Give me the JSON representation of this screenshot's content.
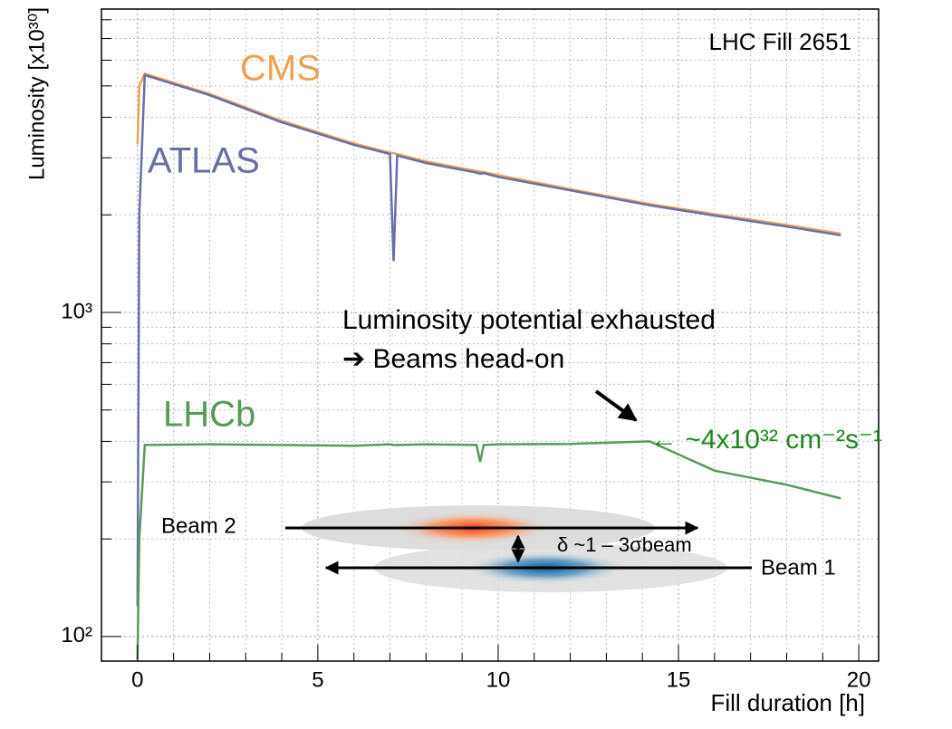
{
  "chart_data": {
    "type": "line",
    "title": "LHC Fill 2651",
    "x_label": "Fill duration [h]",
    "y_label": "Luminosity [x10³⁰]",
    "log_y": true,
    "grid": true,
    "xlim": [
      -1,
      20.55
    ],
    "ylim": [
      84,
      8630
    ],
    "xticks": [
      0,
      5,
      10,
      15,
      20
    ],
    "yticks": [
      {
        "value": 100,
        "label": "10²"
      },
      {
        "value": 1000,
        "label": "10³"
      }
    ],
    "xminorticks": [
      1,
      2,
      3,
      4,
      6,
      7,
      8,
      9,
      11,
      12,
      13,
      14,
      16,
      17,
      18,
      19
    ],
    "yminorticks": [
      200,
      300,
      400,
      500,
      600,
      700,
      800,
      900,
      2000,
      3000,
      4000,
      5000,
      6000,
      7000,
      8000
    ],
    "x": [
      0,
      0.05,
      0.2,
      2,
      4,
      6,
      7.0,
      7.1,
      7.2,
      8,
      9.4,
      9.5,
      9.6,
      10,
      12,
      14.2,
      16,
      18,
      19.5
    ],
    "series": [
      {
        "name": "CMS",
        "color": "#f0a050",
        "values": [
          3300,
          5000,
          5450,
          4720,
          3900,
          3320,
          3110,
          3100,
          3080,
          2920,
          2730,
          2720,
          2710,
          2650,
          2400,
          2160,
          2010,
          1860,
          1750
        ]
      },
      {
        "name": "ATLAS",
        "color": "#6670a8",
        "values": [
          124,
          2000,
          5400,
          4680,
          3860,
          3290,
          3080,
          1440,
          3050,
          2890,
          2700,
          2680,
          2690,
          2620,
          2380,
          2140,
          1990,
          1840,
          1730
        ]
      },
      {
        "name": "LHCb",
        "color": "#5a9a5a",
        "values": [
          85,
          200,
          390,
          392,
          390,
          388,
          392,
          390,
          390,
          392,
          390,
          346,
          390,
          392,
          393,
          400,
          325,
          294,
          267
        ]
      }
    ],
    "annotations": [
      "Luminosity potential exhausted",
      "➔ Beams head-on",
      "← ~4x10³² cm⁻²s⁻¹",
      "Beam 2",
      "Beam 1",
      "δ ~1 – 3σbeam"
    ]
  }
}
